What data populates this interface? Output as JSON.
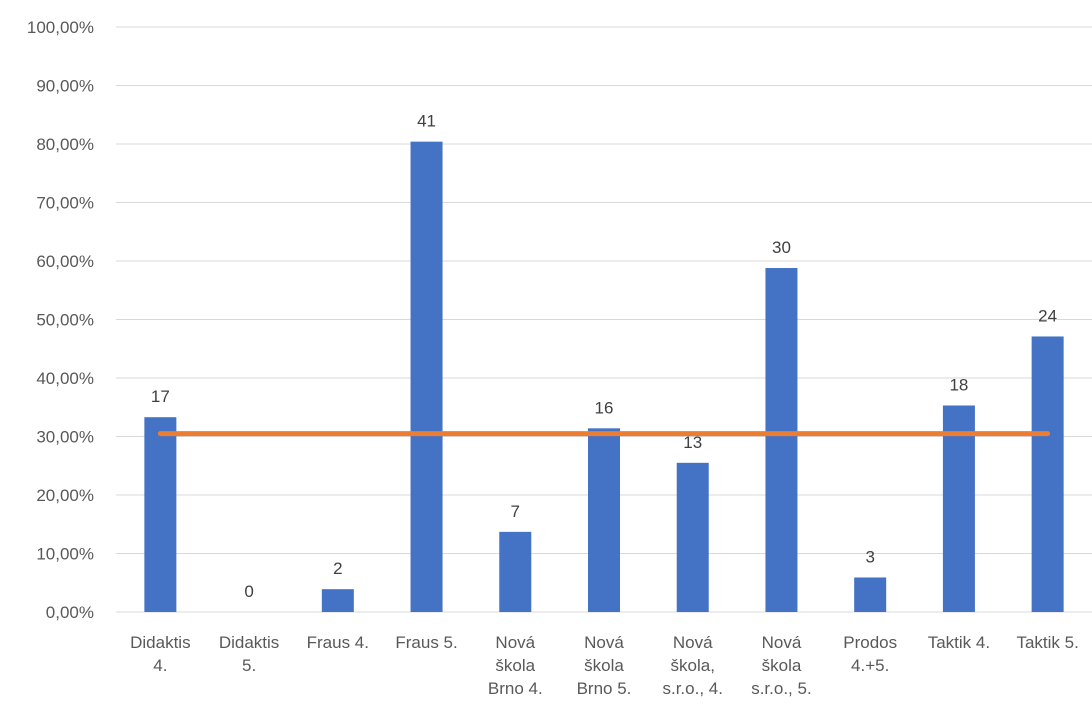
{
  "chart_data": {
    "type": "bar",
    "categories": [
      [
        "Didaktis",
        "4."
      ],
      [
        "Didaktis",
        "5."
      ],
      [
        "Fraus 4."
      ],
      [
        "Fraus 5."
      ],
      [
        "Nová",
        "škola",
        "Brno 4."
      ],
      [
        "Nová",
        "škola",
        "Brno 5."
      ],
      [
        "Nová",
        "škola,",
        "s.r.o., 4."
      ],
      [
        "Nová",
        "škola",
        "s.r.o., 5."
      ],
      [
        "Prodos",
        "4.+5."
      ],
      [
        "Taktik 4."
      ],
      [
        "Taktik 5."
      ]
    ],
    "series": [
      {
        "type": "bar",
        "values": [
          0.333,
          0.0,
          0.039,
          0.804,
          0.137,
          0.314,
          0.255,
          0.588,
          0.059,
          0.353,
          0.471
        ],
        "data_labels": [
          "17",
          "0",
          "2",
          "41",
          "7",
          "16",
          "13",
          "30",
          "3",
          "18",
          "24"
        ],
        "color": "#4472c4"
      },
      {
        "type": "line",
        "values": [
          0.305,
          0.305,
          0.305,
          0.305,
          0.305,
          0.305,
          0.305,
          0.305,
          0.305,
          0.305,
          0.305
        ],
        "color": "#ed7d31"
      }
    ],
    "ylim": [
      0,
      1
    ],
    "yticks": [
      "0,00%",
      "10,00%",
      "20,00%",
      "30,00%",
      "40,00%",
      "50,00%",
      "60,00%",
      "70,00%",
      "80,00%",
      "90,00%",
      "100,00%"
    ],
    "grid": true,
    "legend": "none"
  }
}
